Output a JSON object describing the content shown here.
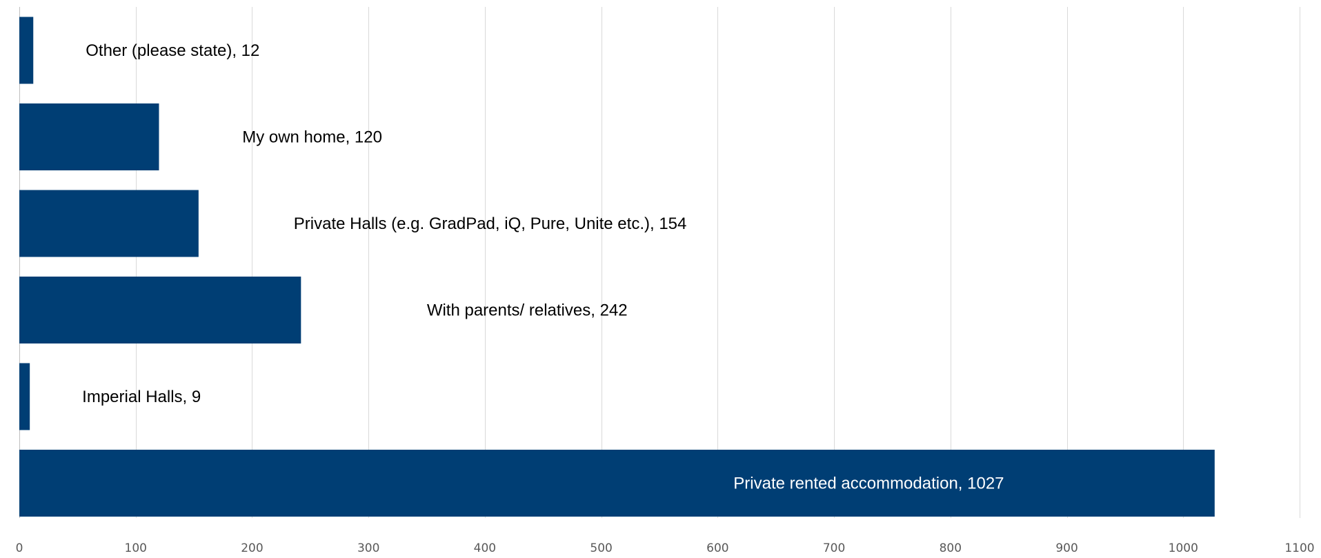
{
  "chart_data": {
    "type": "bar",
    "orientation": "horizontal",
    "categories": [
      "Private rented accommodation",
      "Imperial Halls",
      "With parents/ relatives",
      "Private Halls (e.g. GradPad, iQ, Pure, Unite etc.)",
      "My own home",
      "Other (please state)"
    ],
    "values": [
      1027,
      9,
      242,
      154,
      120,
      12
    ],
    "data_labels": [
      "Private rented accommodation, 1027",
      "Imperial Halls, 9",
      "With parents/ relatives, 242",
      "Private Halls (e.g. GradPad, iQ, Pure, Unite etc.), 154",
      "My own home, 120",
      "Other (please state), 12"
    ],
    "title": "",
    "xlabel": "",
    "ylabel": "",
    "xlim": [
      0,
      1100
    ],
    "x_ticks": [
      0,
      100,
      200,
      300,
      400,
      500,
      600,
      700,
      800,
      900,
      1000,
      1100
    ],
    "grid": "vertical",
    "legend": "none",
    "colors": {
      "bar": "#003E74",
      "grid": "#D9D9D9",
      "axis": "#BFBFBF",
      "tick_text": "#595959",
      "label_text": "#000000",
      "label_text_inside": "#FFFFFF"
    }
  }
}
